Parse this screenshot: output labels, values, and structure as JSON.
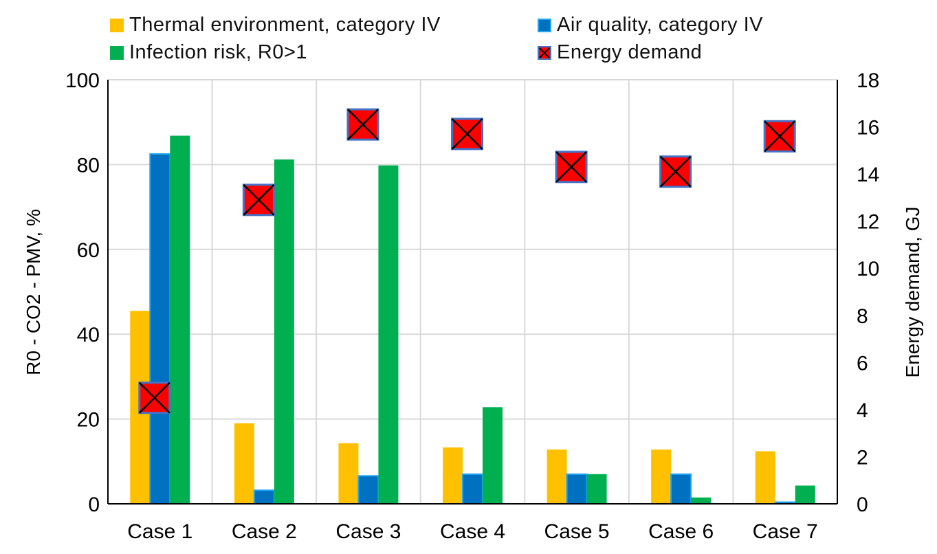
{
  "chart_data": {
    "type": "bar",
    "categories": [
      "Case 1",
      "Case 2",
      "Case 3",
      "Case 4",
      "Case 5",
      "Case 6",
      "Case 7"
    ],
    "series": [
      {
        "name": "Thermal environment, category IV",
        "axis": "left",
        "values": [
          45.5,
          19,
          14.3,
          13.3,
          12.8,
          12.8,
          12.4
        ],
        "color": "#FFC000"
      },
      {
        "name": "Air quality, category IV",
        "axis": "left",
        "values": [
          82.5,
          3.2,
          6.6,
          7,
          7,
          7,
          0.4
        ],
        "color": "#0070C0"
      },
      {
        "name": "Infection risk, R0>1",
        "axis": "left",
        "values": [
          86.8,
          81.2,
          79.8,
          22.8,
          7,
          1.5,
          4.3
        ],
        "color": "#00B050"
      },
      {
        "name": "Energy demand",
        "axis": "right",
        "type": "scatter",
        "values": [
          4.5,
          12.9,
          16.1,
          15.7,
          14.3,
          14.1,
          15.6
        ],
        "color": "#FF0000"
      }
    ],
    "ylabel": "R0 - CO2 - PMV, %",
    "ylim": [
      0,
      100
    ],
    "yticks": [
      "0",
      "20",
      "40",
      "60",
      "80",
      "100"
    ],
    "y2label": "Energy demand, GJ",
    "y2lim": [
      0,
      18
    ],
    "y2ticks": [
      "0",
      "2",
      "4",
      "6",
      "8",
      "10",
      "12",
      "14",
      "16",
      "18"
    ],
    "grid": true,
    "legend_position": "top"
  },
  "legend": {
    "thermal": "Thermal environment, category IV",
    "air": "Air quality, category IV",
    "infection": "Infection risk, R0>1",
    "energy": "Energy demand"
  }
}
